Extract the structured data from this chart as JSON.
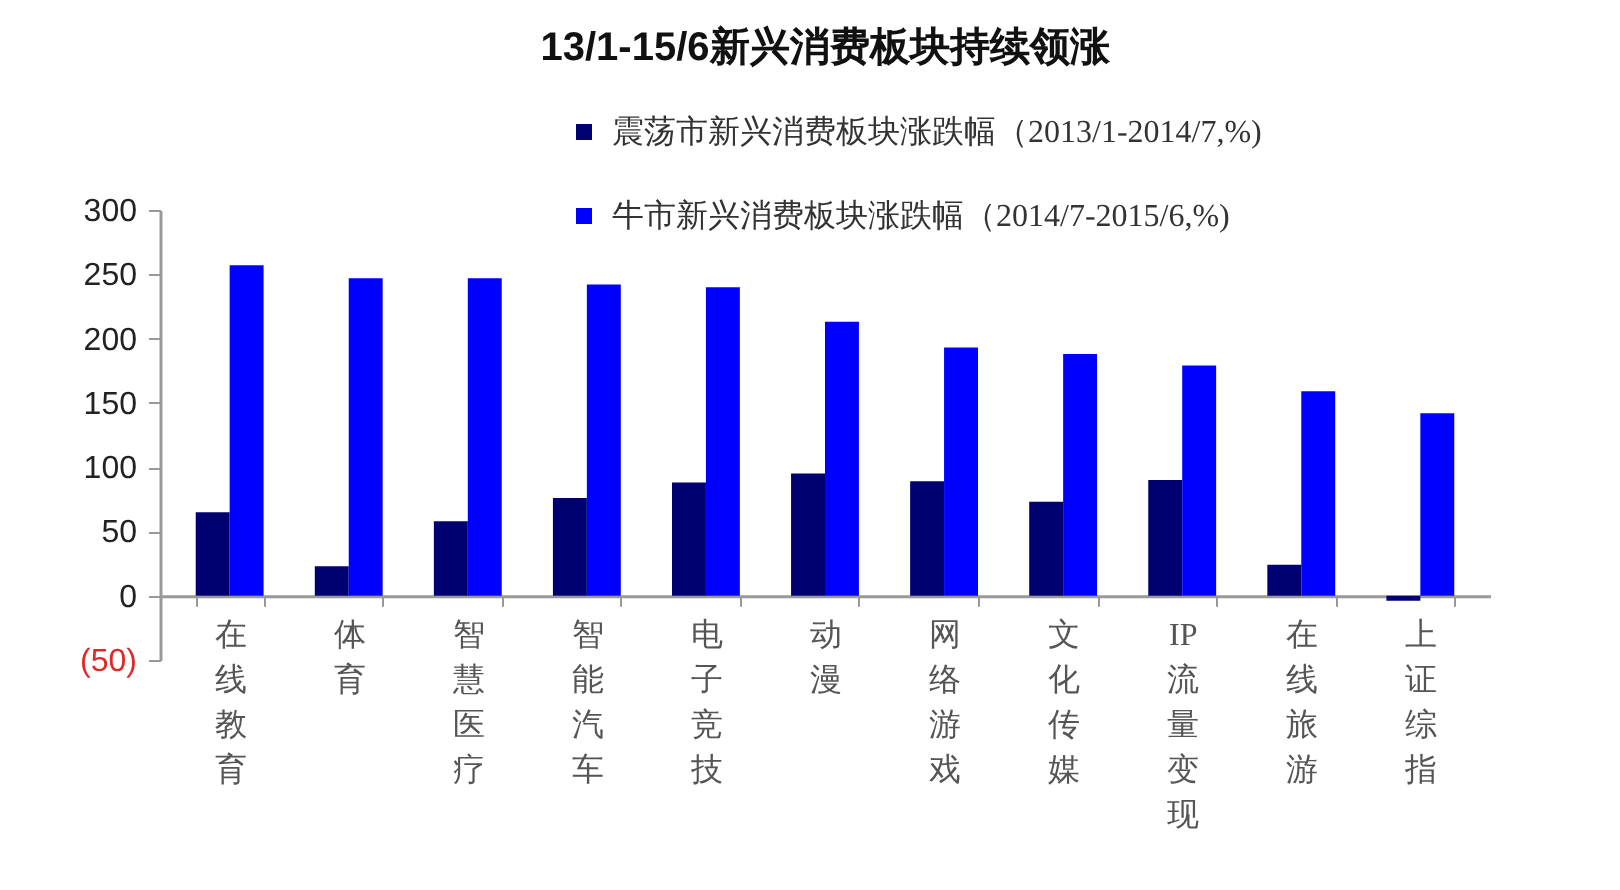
{
  "chart_data": {
    "type": "bar",
    "title": "13/1-15/6新兴消费板块持续领涨",
    "categories": [
      "在线教育",
      "体育",
      "智慧医疗",
      "智能汽车",
      "电子竞技",
      "动漫",
      "网络游戏",
      "文化传媒",
      "IP流量变现",
      "在线旅游",
      "上证综指"
    ],
    "series": [
      {
        "name": "震荡市新兴消费板块涨跌幅（2013/1-2014/7,%)",
        "color": "#000070",
        "values": [
          65,
          23,
          58,
          76,
          88,
          95,
          89,
          73,
          90,
          24,
          -4
        ]
      },
      {
        "name": "牛市新兴消费板块涨跌幅（2014/7-2015/6,%)",
        "color": "#0000ff",
        "values": [
          257,
          247,
          247,
          242,
          240,
          213,
          193,
          188,
          179,
          159,
          142
        ]
      }
    ],
    "ylim": [
      -50,
      300
    ],
    "yticks": [
      {
        "value": -50,
        "label": "(50)"
      },
      0,
      50,
      100,
      150,
      200,
      250,
      300
    ],
    "legend": "top right"
  }
}
